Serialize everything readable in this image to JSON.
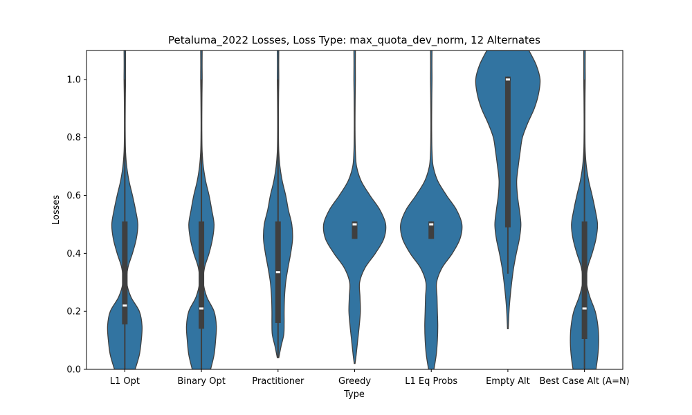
{
  "chart_data": {
    "type": "violin",
    "title": "Petaluma_2022 Losses, Loss Type: max_quota_dev_norm, 12 Alternates",
    "xlabel": "Type",
    "ylabel": "Losses",
    "ylim": [
      0,
      1.1
    ],
    "yticks": [
      "0.0",
      "0.2",
      "0.4",
      "0.6",
      "0.8",
      "1.0"
    ],
    "grid": false,
    "color": "#3274a1",
    "box_color": "#3f3f3f",
    "categories": [
      "L1 Opt",
      "Binary Opt",
      "Practitioner",
      "Greedy",
      "L1 Eq Probs",
      "Empty Alt",
      "Best Case Alt (A=N)"
    ],
    "series": [
      {
        "category": "L1 Opt",
        "min": 0,
        "q1": 0.155,
        "median": 0.22,
        "q3": 0.51,
        "max": 1.1,
        "whisker": [
          0,
          1.0
        ],
        "density_y": [
          0,
          0.05,
          0.1,
          0.15,
          0.2,
          0.25,
          0.3,
          0.35,
          0.4,
          0.45,
          0.5,
          0.55,
          0.6,
          0.65,
          0.7,
          0.75,
          0.8,
          0.85,
          0.9,
          0.95,
          1.0,
          1.05,
          1.1
        ],
        "density_w": [
          0.27,
          0.38,
          0.43,
          0.45,
          0.38,
          0.16,
          0.05,
          0.08,
          0.2,
          0.3,
          0.34,
          0.28,
          0.2,
          0.11,
          0.05,
          0.02,
          0.012,
          0.01,
          0.012,
          0.015,
          0.02,
          0.018,
          0.02
        ]
      },
      {
        "category": "Binary Opt",
        "min": 0,
        "q1": 0.14,
        "median": 0.21,
        "q3": 0.51,
        "max": 1.1,
        "whisker": [
          0,
          1.0
        ],
        "density_y": [
          0,
          0.05,
          0.1,
          0.15,
          0.2,
          0.25,
          0.3,
          0.35,
          0.4,
          0.45,
          0.5,
          0.55,
          0.6,
          0.65,
          0.7,
          0.75,
          0.8,
          0.85,
          0.9,
          0.95,
          1.0,
          1.05,
          1.1
        ],
        "density_w": [
          0.24,
          0.33,
          0.37,
          0.39,
          0.33,
          0.14,
          0.05,
          0.08,
          0.2,
          0.29,
          0.33,
          0.27,
          0.2,
          0.11,
          0.05,
          0.02,
          0.012,
          0.01,
          0.012,
          0.015,
          0.02,
          0.018,
          0.02
        ]
      },
      {
        "category": "Practitioner",
        "min": 0.04,
        "q1": 0.16,
        "median": 0.335,
        "q3": 0.51,
        "max": 1.1,
        "whisker": [
          0.04,
          1.0
        ],
        "density_y": [
          0.04,
          0.08,
          0.12,
          0.16,
          0.2,
          0.25,
          0.3,
          0.35,
          0.4,
          0.45,
          0.5,
          0.55,
          0.6,
          0.65,
          0.7,
          0.75,
          0.8,
          0.85,
          0.9,
          0.95,
          1.0,
          1.05,
          1.1
        ],
        "density_w": [
          0.02,
          0.08,
          0.15,
          0.16,
          0.16,
          0.17,
          0.2,
          0.26,
          0.33,
          0.38,
          0.36,
          0.27,
          0.2,
          0.11,
          0.05,
          0.02,
          0.012,
          0.01,
          0.012,
          0.015,
          0.02,
          0.018,
          0.02
        ]
      },
      {
        "category": "Greedy",
        "min": 0.02,
        "q1": 0.45,
        "median": 0.5,
        "q3": 0.51,
        "max": 1.1,
        "whisker": [
          0.45,
          0.51
        ],
        "density_y": [
          0.02,
          0.05,
          0.1,
          0.15,
          0.2,
          0.25,
          0.3,
          0.35,
          0.4,
          0.45,
          0.5,
          0.55,
          0.6,
          0.65,
          0.7,
          0.75,
          0.8,
          0.85,
          0.9,
          0.95,
          1.0,
          1.05,
          1.1
        ],
        "density_w": [
          0.01,
          0.04,
          0.08,
          0.12,
          0.15,
          0.14,
          0.13,
          0.27,
          0.54,
          0.76,
          0.81,
          0.66,
          0.4,
          0.17,
          0.05,
          0.02,
          0.012,
          0.01,
          0.012,
          0.015,
          0.02,
          0.018,
          0.02
        ]
      },
      {
        "category": "L1 Eq Probs",
        "min": 0,
        "q1": 0.45,
        "median": 0.5,
        "q3": 0.51,
        "max": 1.1,
        "whisker": [
          0.45,
          0.51
        ],
        "density_y": [
          0,
          0.05,
          0.1,
          0.15,
          0.2,
          0.25,
          0.3,
          0.35,
          0.4,
          0.45,
          0.5,
          0.55,
          0.6,
          0.65,
          0.7,
          0.75,
          0.8,
          0.85,
          0.9,
          0.95,
          1.0,
          1.05,
          1.1
        ],
        "density_w": [
          0.07,
          0.13,
          0.16,
          0.17,
          0.16,
          0.15,
          0.14,
          0.28,
          0.55,
          0.75,
          0.8,
          0.66,
          0.4,
          0.17,
          0.05,
          0.02,
          0.012,
          0.01,
          0.012,
          0.015,
          0.02,
          0.018,
          0.02
        ]
      },
      {
        "category": "Empty Alt",
        "min": 0.14,
        "q1": 0.49,
        "median": 1.0,
        "q3": 1.01,
        "max": 1.1,
        "whisker": [
          0.33,
          1.01
        ],
        "density_y": [
          0.14,
          0.2,
          0.25,
          0.3,
          0.35,
          0.4,
          0.45,
          0.5,
          0.55,
          0.6,
          0.65,
          0.7,
          0.75,
          0.8,
          0.85,
          0.9,
          0.95,
          1.0,
          1.05,
          1.1
        ],
        "density_w": [
          0.01,
          0.03,
          0.06,
          0.1,
          0.15,
          0.22,
          0.3,
          0.34,
          0.3,
          0.25,
          0.23,
          0.27,
          0.32,
          0.38,
          0.52,
          0.69,
          0.8,
          0.84,
          0.74,
          0.55
        ]
      },
      {
        "category": "Best Case Alt (A=N)",
        "min": 0,
        "q1": 0.105,
        "median": 0.21,
        "q3": 0.51,
        "max": 1.1,
        "whisker": [
          0,
          1.0
        ],
        "density_y": [
          0,
          0.05,
          0.1,
          0.15,
          0.2,
          0.25,
          0.3,
          0.35,
          0.4,
          0.45,
          0.5,
          0.55,
          0.6,
          0.65,
          0.7,
          0.75,
          0.8,
          0.85,
          0.9,
          0.95,
          1.0,
          1.05,
          1.1
        ],
        "density_w": [
          0.3,
          0.35,
          0.37,
          0.35,
          0.28,
          0.14,
          0.05,
          0.08,
          0.2,
          0.3,
          0.34,
          0.28,
          0.2,
          0.11,
          0.05,
          0.02,
          0.012,
          0.01,
          0.012,
          0.015,
          0.02,
          0.018,
          0.02
        ]
      }
    ]
  }
}
